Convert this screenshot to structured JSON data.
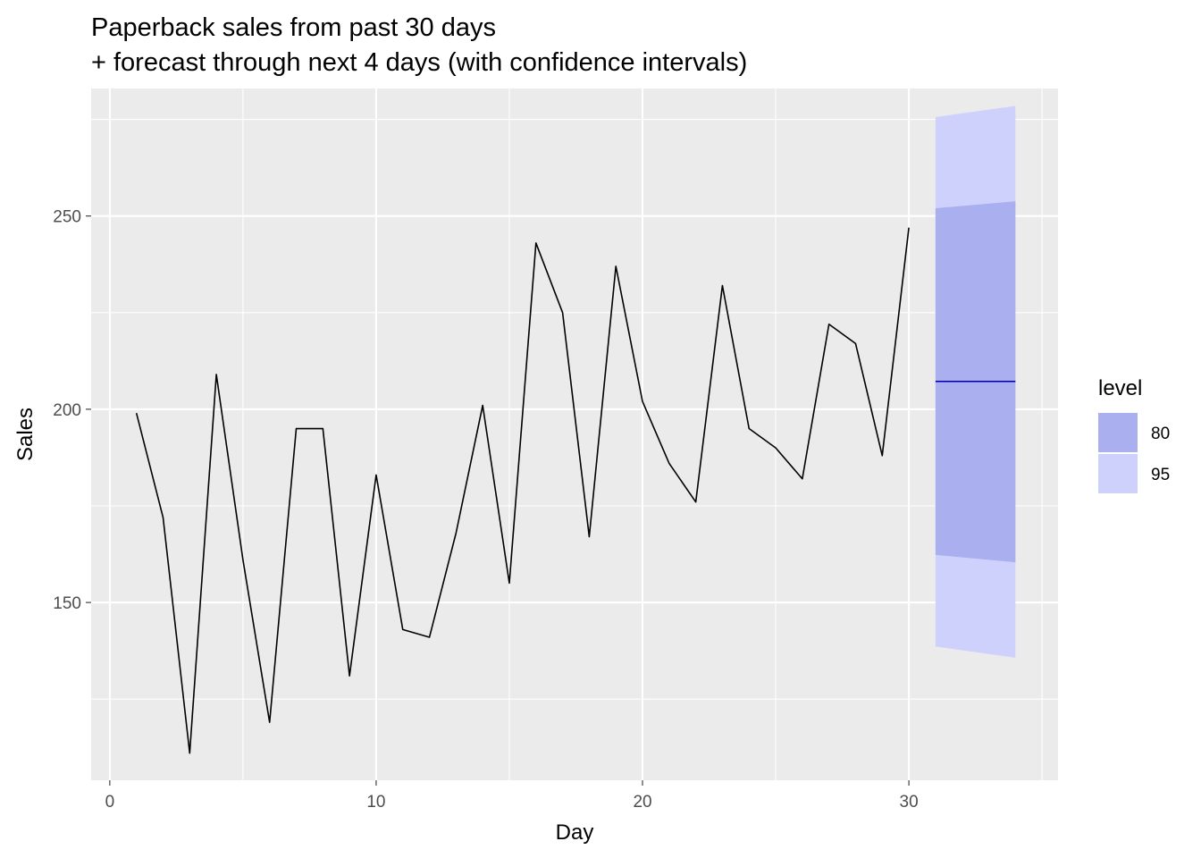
{
  "chart_data": {
    "type": "line",
    "title": [
      "Paperback sales from past 30 days",
      "+ forecast through next 4 days (with confidence intervals)"
    ],
    "xlabel": "Day",
    "ylabel": "Sales",
    "xlim": [
      -0.7,
      35.6
    ],
    "ylim": [
      104,
      283
    ],
    "x_ticks": [
      0,
      10,
      20,
      30
    ],
    "y_ticks": [
      150,
      200,
      250
    ],
    "grid": true,
    "legend": {
      "title": "level",
      "placement": "right",
      "entries": [
        {
          "label": "80",
          "color": "#aab0ef"
        },
        {
          "label": "95",
          "color": "#cdd1fc"
        }
      ]
    },
    "series": [
      {
        "x": [
          1,
          2,
          3,
          4,
          5,
          6,
          7,
          8,
          9,
          10,
          11,
          12,
          13,
          14,
          15,
          16,
          17,
          18,
          19,
          20,
          21,
          22,
          23,
          24,
          25,
          26,
          27,
          28,
          29,
          30
        ],
        "values": [
          199,
          172,
          111,
          209,
          161,
          119,
          195,
          195,
          131,
          183,
          143,
          141,
          168,
          201,
          155,
          243,
          225,
          167,
          237,
          202,
          186,
          176,
          232,
          195,
          190,
          182,
          222,
          217,
          188,
          247
        ],
        "color": "#000000"
      },
      {
        "x": [
          31,
          34
        ],
        "values": [
          207.2,
          207.2
        ],
        "color": "#0000aa"
      }
    ],
    "bands": [
      {
        "level": "95",
        "x": [
          31,
          34
        ],
        "lower": [
          138.6,
          135.7
        ],
        "upper": [
          275.6,
          278.5
        ],
        "color": "#cdd1fc"
      },
      {
        "level": "80",
        "x": [
          31,
          34
        ],
        "lower": [
          162.3,
          160.4
        ],
        "upper": [
          252.0,
          253.8
        ],
        "color": "#aab0ef"
      }
    ]
  }
}
